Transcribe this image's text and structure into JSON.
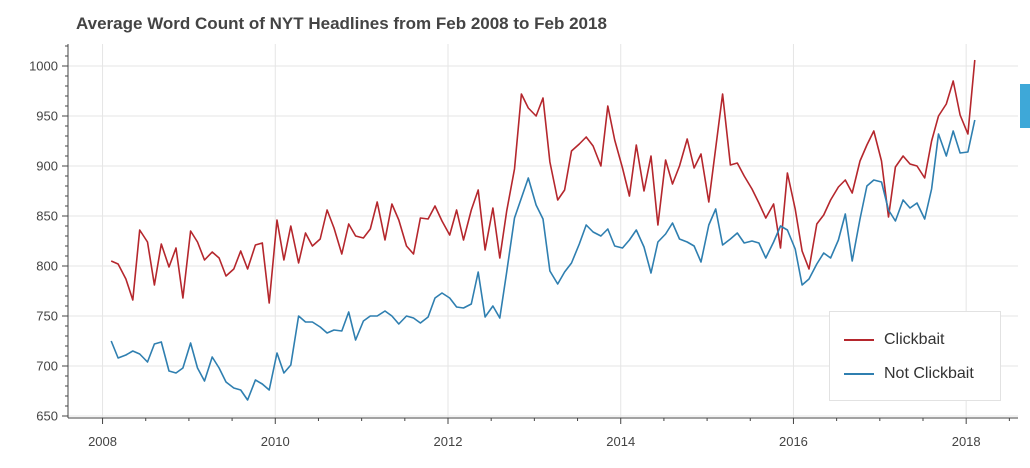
{
  "chart_data": {
    "type": "line",
    "title": "Average Word Count of NYT Headlines from Feb 2008 to Feb 2018",
    "xlabel": "",
    "ylabel": "",
    "xlim": [
      2007.6,
      2018.6
    ],
    "ylim": [
      648,
      1022
    ],
    "x_ticks": [
      "2008",
      "2010",
      "2012",
      "2014",
      "2016",
      "2018"
    ],
    "y_ticks": [
      "650",
      "700",
      "750",
      "800",
      "850",
      "900",
      "950",
      "1000"
    ],
    "grid": true,
    "legend_position": "bottom-right",
    "x": [
      2008.1,
      2008.18,
      2008.27,
      2008.35,
      2008.43,
      2008.52,
      2008.6,
      2008.68,
      2008.77,
      2008.85,
      2008.93,
      2009.02,
      2009.1,
      2009.18,
      2009.27,
      2009.35,
      2009.43,
      2009.52,
      2009.6,
      2009.68,
      2009.77,
      2009.85,
      2009.93,
      2010.02,
      2010.1,
      2010.18,
      2010.27,
      2010.35,
      2010.43,
      2010.52,
      2010.6,
      2010.68,
      2010.77,
      2010.85,
      2010.93,
      2011.02,
      2011.1,
      2011.18,
      2011.27,
      2011.35,
      2011.43,
      2011.52,
      2011.6,
      2011.68,
      2011.77,
      2011.85,
      2011.93,
      2012.02,
      2012.1,
      2012.18,
      2012.27,
      2012.35,
      2012.43,
      2012.52,
      2012.6,
      2012.68,
      2012.77,
      2012.85,
      2012.93,
      2013.02,
      2013.1,
      2013.18,
      2013.27,
      2013.35,
      2013.43,
      2013.52,
      2013.6,
      2013.68,
      2013.77,
      2013.85,
      2013.93,
      2014.02,
      2014.1,
      2014.18,
      2014.27,
      2014.35,
      2014.43,
      2014.52,
      2014.6,
      2014.68,
      2014.77,
      2014.85,
      2014.93,
      2015.02,
      2015.1,
      2015.18,
      2015.27,
      2015.35,
      2015.43,
      2015.52,
      2015.6,
      2015.68,
      2015.77,
      2015.85,
      2015.93,
      2016.02,
      2016.1,
      2016.18,
      2016.27,
      2016.35,
      2016.43,
      2016.52,
      2016.6,
      2016.68,
      2016.77,
      2016.85,
      2016.93,
      2017.02,
      2017.1,
      2017.18,
      2017.27,
      2017.35,
      2017.43,
      2017.52,
      2017.6,
      2017.68,
      2017.77,
      2017.85,
      2017.93,
      2018.02,
      2018.1
    ],
    "series": [
      {
        "name": "Clickbait",
        "color": "#b5272d",
        "values": [
          805,
          802,
          787,
          766,
          836,
          824,
          781,
          822,
          799,
          818,
          768,
          835,
          824,
          806,
          814,
          808,
          790,
          797,
          815,
          797,
          821,
          823,
          763,
          846,
          806,
          840,
          803,
          833,
          820,
          827,
          856,
          838,
          812,
          842,
          830,
          828,
          837,
          864,
          826,
          862,
          846,
          820,
          812,
          848,
          847,
          860,
          845,
          831,
          856,
          826,
          856,
          876,
          816,
          858,
          808,
          855,
          897,
          972,
          958,
          950,
          968,
          904,
          866,
          876,
          915,
          922,
          929,
          920,
          900,
          960,
          926,
          898,
          870,
          921,
          875,
          910,
          841,
          906,
          882,
          900,
          927,
          898,
          912,
          864,
          918,
          972,
          901,
          903,
          890,
          877,
          863,
          848,
          862,
          818,
          893,
          857,
          815,
          797,
          842,
          851,
          866,
          879,
          886,
          873,
          905,
          921,
          935,
          905,
          849,
          899,
          910,
          902,
          900,
          888,
          925,
          950,
          962,
          985,
          951,
          932,
          1006
        ]
      },
      {
        "name": "Not Clickbait",
        "color": "#2f7fb0",
        "values": [
          725,
          708,
          711,
          715,
          712,
          704,
          722,
          724,
          695,
          693,
          698,
          723,
          698,
          685,
          709,
          698,
          684,
          678,
          676,
          666,
          686,
          682,
          676,
          713,
          693,
          701,
          750,
          744,
          744,
          739,
          733,
          736,
          735,
          754,
          726,
          745,
          750,
          750,
          755,
          750,
          742,
          750,
          748,
          743,
          749,
          768,
          773,
          768,
          759,
          758,
          762,
          794,
          749,
          760,
          748,
          794,
          848,
          868,
          888,
          861,
          847,
          795,
          782,
          794,
          803,
          822,
          841,
          834,
          830,
          837,
          820,
          818,
          826,
          836,
          819,
          793,
          824,
          832,
          843,
          827,
          824,
          820,
          804,
          841,
          857,
          821,
          827,
          833,
          823,
          825,
          823,
          808,
          824,
          840,
          836,
          817,
          781,
          787,
          802,
          813,
          808,
          826,
          852,
          805,
          847,
          880,
          886,
          884,
          856,
          845,
          866,
          858,
          863,
          847,
          877,
          932,
          910,
          935,
          913,
          914,
          946
        ]
      }
    ]
  }
}
